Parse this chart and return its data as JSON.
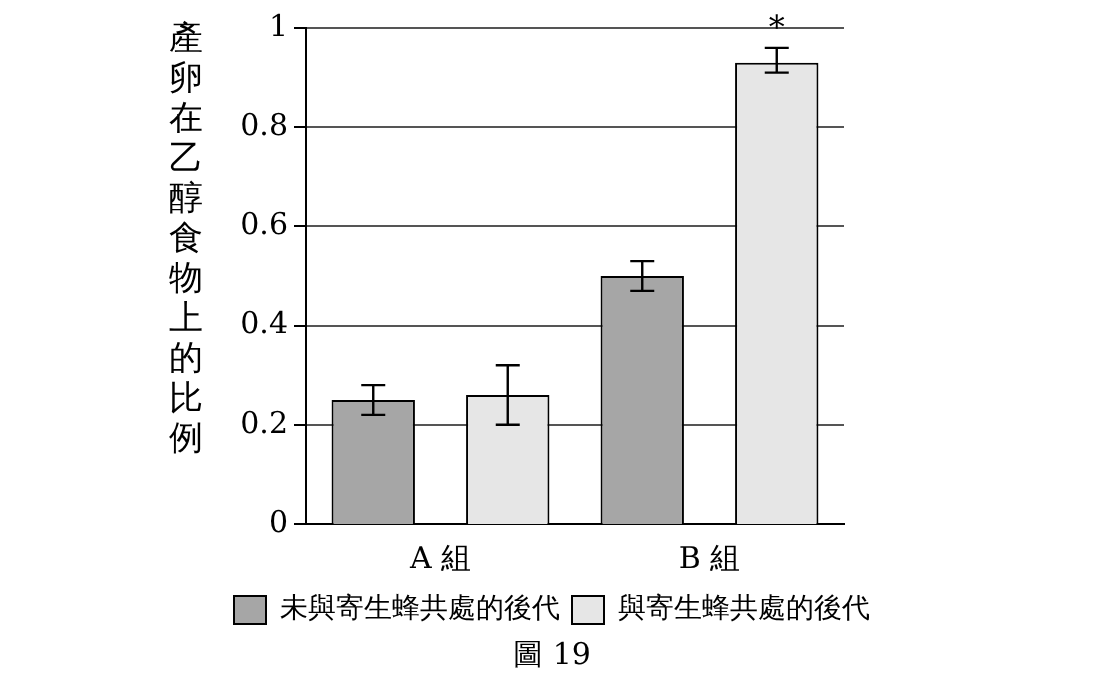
{
  "chart_data": {
    "type": "bar",
    "ylabel": "產卵在乙醇食物上的比例",
    "categories": [
      "A 組",
      "B 組"
    ],
    "series": [
      {
        "name": "未與寄生蜂共處的後代",
        "color": "#a6a6a6",
        "values": [
          0.25,
          0.5
        ],
        "errors": [
          0.03,
          0.03
        ]
      },
      {
        "name": "與寄生蜂共處的後代",
        "color": "#e6e6e6",
        "values": [
          0.26,
          0.93
        ],
        "errors": [
          0.06,
          [
            0.91,
            0.96
          ]
        ]
      }
    ],
    "ylim": [
      0,
      1
    ],
    "yticks": [
      0,
      0.2,
      0.4,
      0.6,
      0.8,
      1
    ],
    "grid": "y",
    "legend": "bottom",
    "annotations": [
      "*",
      "圖 19"
    ]
  }
}
